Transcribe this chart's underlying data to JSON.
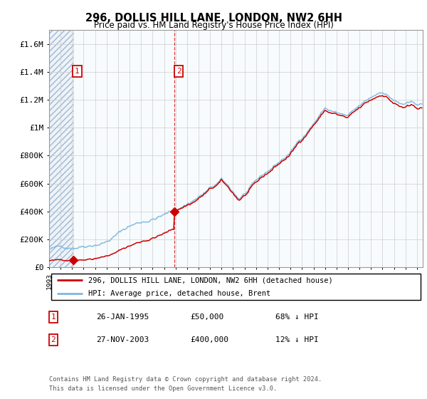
{
  "title1": "296, DOLLIS HILL LANE, LONDON, NW2 6HH",
  "title2": "Price paid vs. HM Land Registry's House Price Index (HPI)",
  "legend_line1": "296, DOLLIS HILL LANE, LONDON, NW2 6HH (detached house)",
  "legend_line2": "HPI: Average price, detached house, Brent",
  "sale1_date": "26-JAN-1995",
  "sale1_price": "£50,000",
  "sale1_hpi": "68% ↓ HPI",
  "sale2_date": "27-NOV-2003",
  "sale2_price": "£400,000",
  "sale2_hpi": "12% ↓ HPI",
  "footer": "Contains HM Land Registry data © Crown copyright and database right 2024.\nThis data is licensed under the Open Government Licence v3.0.",
  "hpi_color": "#7db9e0",
  "price_color": "#cc0000",
  "bg_hatch_color": "#dce9f5",
  "ylim": [
    0,
    1700000
  ],
  "yticks": [
    0,
    200000,
    400000,
    600000,
    800000,
    1000000,
    1200000,
    1400000,
    1600000
  ],
  "ytick_labels": [
    "£0",
    "£200K",
    "£400K",
    "£600K",
    "£800K",
    "£1M",
    "£1.2M",
    "£1.4M",
    "£1.6M"
  ],
  "sale1_x": 1995.08,
  "sale2_x": 2003.92,
  "sale1_y": 50000,
  "sale2_y": 400000,
  "xmin": 1993.0,
  "xmax": 2025.5,
  "hatch_xstart": 1993.0,
  "hatch_xend": 1995.08
}
